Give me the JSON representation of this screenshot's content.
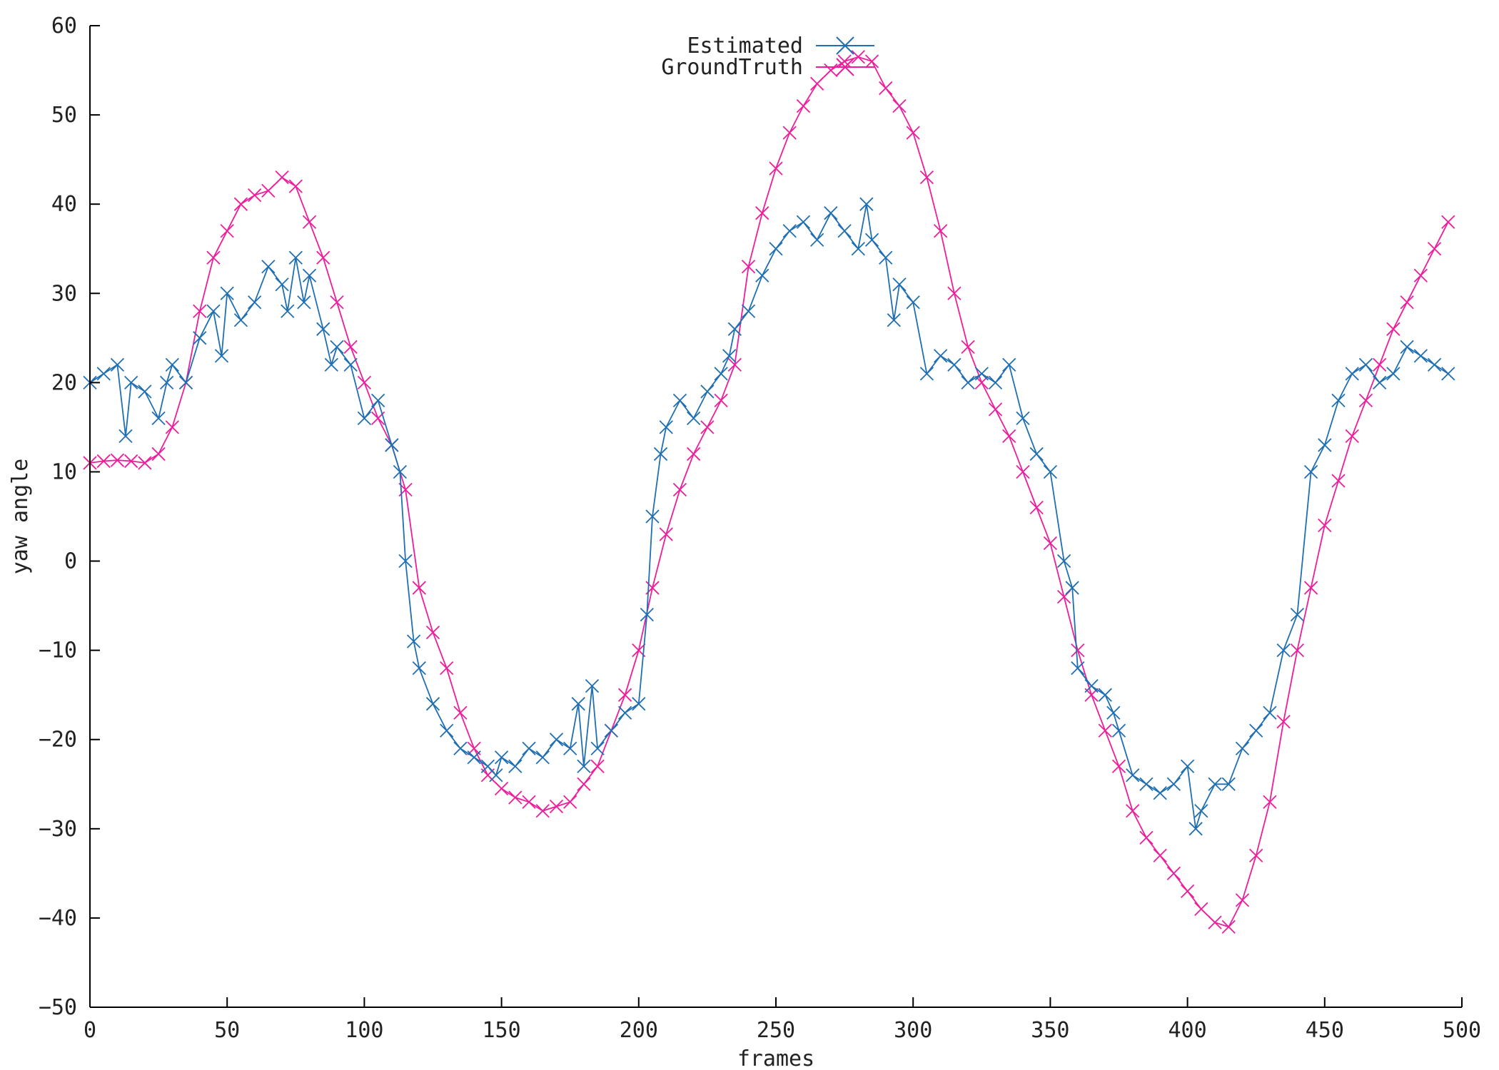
{
  "chart_data": {
    "type": "line",
    "title": "",
    "xlabel": "frames",
    "ylabel": "yaw angle",
    "xlim": [
      0,
      500
    ],
    "ylim": [
      -50,
      60
    ],
    "x_ticks": [
      0,
      50,
      100,
      150,
      200,
      250,
      300,
      350,
      400,
      450,
      500
    ],
    "y_ticks": [
      -50,
      -40,
      -30,
      -20,
      -10,
      0,
      10,
      20,
      30,
      40,
      50,
      60
    ],
    "grid": false,
    "legend_position": "top-center",
    "series": [
      {
        "name": "Estimated",
        "color": "#1f6fb2",
        "marker": "x",
        "x": [
          0,
          5,
          10,
          13,
          15,
          20,
          25,
          28,
          30,
          35,
          40,
          45,
          48,
          50,
          55,
          60,
          65,
          70,
          72,
          75,
          78,
          80,
          85,
          88,
          90,
          95,
          100,
          105,
          110,
          113,
          115,
          118,
          120,
          125,
          130,
          135,
          140,
          145,
          148,
          150,
          155,
          160,
          165,
          170,
          175,
          178,
          180,
          183,
          185,
          190,
          195,
          200,
          203,
          205,
          208,
          210,
          215,
          220,
          225,
          230,
          233,
          235,
          240,
          245,
          250,
          255,
          260,
          265,
          270,
          275,
          280,
          283,
          285,
          290,
          293,
          295,
          300,
          305,
          310,
          315,
          320,
          325,
          330,
          335,
          340,
          345,
          350,
          355,
          358,
          360,
          365,
          370,
          373,
          375,
          380,
          385,
          390,
          395,
          400,
          403,
          405,
          410,
          415,
          420,
          425,
          430,
          435,
          440,
          445,
          450,
          455,
          460,
          465,
          470,
          475,
          480,
          485,
          490,
          495
        ],
        "values": [
          20,
          21,
          22,
          14,
          20,
          19,
          16,
          20,
          22,
          20,
          25,
          28,
          23,
          30,
          27,
          29,
          33,
          31,
          28,
          34,
          29,
          32,
          26,
          22,
          24,
          22,
          16,
          18,
          13,
          10,
          0,
          -9,
          -12,
          -16,
          -19,
          -21,
          -22,
          -23,
          -24,
          -22,
          -23,
          -21,
          -22,
          -20,
          -21,
          -16,
          -23,
          -14,
          -21,
          -19,
          -17,
          -16,
          -6,
          5,
          12,
          15,
          18,
          16,
          19,
          21,
          23,
          26,
          28,
          32,
          35,
          37,
          38,
          36,
          39,
          37,
          35,
          40,
          36,
          34,
          27,
          31,
          29,
          21,
          23,
          22,
          20,
          21,
          20,
          22,
          16,
          12,
          10,
          0,
          -3,
          -12,
          -14,
          -15,
          -17,
          -19,
          -24,
          -25,
          -26,
          -25,
          -23,
          -30,
          -28,
          -25,
          -25,
          -21,
          -19,
          -17,
          -10,
          -6,
          10,
          13,
          18,
          21,
          22,
          20,
          21,
          24,
          23,
          22,
          21
        ]
      },
      {
        "name": "GroundTruth",
        "color": "#ee1d9c",
        "marker": "x",
        "x": [
          0,
          5,
          10,
          15,
          20,
          25,
          30,
          35,
          40,
          45,
          50,
          55,
          60,
          65,
          70,
          75,
          80,
          85,
          90,
          95,
          100,
          105,
          110,
          115,
          120,
          125,
          130,
          135,
          140,
          145,
          150,
          155,
          160,
          165,
          170,
          175,
          180,
          185,
          190,
          195,
          200,
          205,
          210,
          215,
          220,
          225,
          230,
          235,
          240,
          245,
          250,
          255,
          260,
          265,
          270,
          275,
          280,
          285,
          290,
          295,
          300,
          305,
          310,
          315,
          320,
          325,
          330,
          335,
          340,
          345,
          350,
          355,
          360,
          365,
          370,
          375,
          380,
          385,
          390,
          395,
          400,
          405,
          410,
          415,
          420,
          425,
          430,
          435,
          440,
          445,
          450,
          455,
          460,
          465,
          470,
          475,
          480,
          485,
          490,
          495
        ],
        "values": [
          11,
          11.2,
          11.3,
          11.2,
          11,
          12,
          15,
          20,
          28,
          34,
          37,
          40,
          41,
          41.5,
          43,
          42,
          38,
          34,
          29,
          24,
          20,
          16,
          13,
          8,
          -3,
          -8,
          -12,
          -17,
          -21,
          -24,
          -25.5,
          -26.5,
          -27,
          -28,
          -27.5,
          -27,
          -25,
          -23,
          -19,
          -15,
          -10,
          -3,
          3,
          8,
          12,
          15,
          18,
          22,
          33,
          39,
          44,
          48,
          51,
          53.5,
          55,
          56,
          56.5,
          56,
          53,
          51,
          48,
          43,
          37,
          30,
          24,
          20,
          17,
          14,
          10,
          6,
          2,
          -4,
          -10,
          -15,
          -19,
          -23,
          -28,
          -31,
          -33,
          -35,
          -37,
          -39,
          -40.5,
          -41,
          -38,
          -33,
          -27,
          -18,
          -10,
          -3,
          4,
          9,
          14,
          18,
          22,
          26,
          29,
          32,
          35,
          38
        ]
      }
    ]
  }
}
